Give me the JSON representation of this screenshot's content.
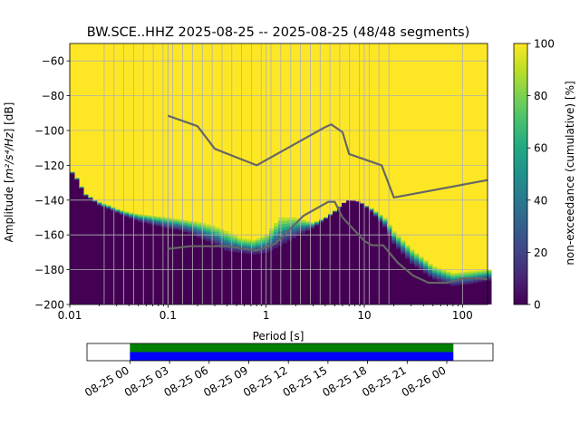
{
  "colors": {
    "viridis": [
      "#440154",
      "#482475",
      "#414487",
      "#355f8d",
      "#2a788e",
      "#21918c",
      "#22a884",
      "#44bf70",
      "#7ad151",
      "#bddf26",
      "#fde725"
    ],
    "model_curve": "#666666",
    "grid": "#b0b0b0",
    "segment_bar_top": "#008000",
    "segment_bar_bottom": "#0000ff"
  },
  "chart_data": [
    {
      "type": "heatmap",
      "title": "BW.SCE..HHZ   2025-08-25 -- 2025-08-25  (48/48 segments)",
      "xlabel": "Period [s]",
      "ylabel_prefix": "Amplitude [",
      "ylabel_math": "m²/s⁴/Hz",
      "ylabel_suffix": "] [dB]",
      "xscale": "log",
      "xlim": [
        0.01,
        180
      ],
      "ylim": [
        -200,
        -50
      ],
      "xticks": [
        {
          "value": 0.01,
          "label": "0.01"
        },
        {
          "value": 0.1,
          "label": "0.1"
        },
        {
          "value": 1,
          "label": "1"
        },
        {
          "value": 10,
          "label": "10"
        },
        {
          "value": 100,
          "label": "100"
        }
      ],
      "yticks": [
        {
          "value": -60,
          "label": "−60"
        },
        {
          "value": -80,
          "label": "−80"
        },
        {
          "value": -100,
          "label": "−100"
        },
        {
          "value": -120,
          "label": "−120"
        },
        {
          "value": -140,
          "label": "−140"
        },
        {
          "value": -160,
          "label": "−160"
        },
        {
          "value": -180,
          "label": "−180"
        },
        {
          "value": -200,
          "label": "−200"
        }
      ],
      "grid": true,
      "period_grid_lines": [
        0.0224,
        0.0282,
        0.0355,
        0.0447,
        0.0562,
        0.0708,
        0.0891,
        0.1,
        0.112,
        0.141,
        0.178,
        0.224,
        0.282,
        0.355,
        0.447,
        0.562,
        0.708,
        0.891,
        1.12,
        1.41,
        1.78,
        2.24,
        2.82,
        3.55,
        4.47,
        5.62,
        7.08,
        8.91,
        11.2,
        14.1,
        17.8
      ],
      "psd_envelope": {
        "period": [
          0.01,
          0.011,
          0.012,
          0.013,
          0.014,
          0.016,
          0.018,
          0.02,
          0.022,
          0.025,
          0.03,
          0.04,
          0.05,
          0.07,
          0.1,
          0.13,
          0.17,
          0.22,
          0.3,
          0.4,
          0.55,
          0.75,
          1,
          1.4,
          2,
          3,
          4,
          5,
          6,
          7,
          9,
          12,
          16,
          20,
          30,
          50,
          80,
          120,
          180
        ],
        "lower_dB": [
          -123,
          -126,
          -129,
          -133,
          -137,
          -139,
          -141,
          -143,
          -144,
          -145,
          -147,
          -150,
          -152,
          -154,
          -156,
          -157,
          -159,
          -162,
          -165,
          -169,
          -170,
          -171,
          -170,
          -166,
          -161,
          -156,
          -151,
          -147,
          -142,
          -140,
          -141,
          -147,
          -155,
          -165,
          -176,
          -185,
          -189,
          -188,
          -186
        ],
        "upper_dB": [
          -122,
          -125,
          -128,
          -132,
          -136,
          -138,
          -140,
          -141,
          -142,
          -143,
          -145,
          -147,
          -148,
          -149,
          -150,
          -151,
          -152,
          -153,
          -155,
          -158,
          -162,
          -163,
          -160,
          -150,
          -150,
          -153,
          -150,
          -146,
          -142,
          -140,
          -141,
          -145,
          -150,
          -158,
          -168,
          -178,
          -182,
          -181,
          -180
        ]
      },
      "colorbar": {
        "label": "non-exceedance (cumulative) [%]",
        "range": [
          0,
          100
        ],
        "ticks": [
          "0",
          "20",
          "40",
          "60",
          "80",
          "100"
        ]
      },
      "series": [
        {
          "name": "",
          "period": [
            0.1,
            0.2,
            0.3,
            0.8,
            4.0,
            4.6,
            6.0,
            7.0,
            15.0,
            20.0,
            180.0
          ],
          "dB": [
            -91.5,
            -97.5,
            -110.5,
            -120.0,
            -98.0,
            -96.5,
            -101.0,
            -113.5,
            -120.0,
            -138.5,
            -128.5
          ]
        },
        {
          "name": "",
          "period": [
            0.1,
            0.17,
            0.4,
            0.8,
            1.24,
            2.4,
            4.3,
            5.0,
            6.0,
            10.0,
            12.0,
            15.6,
            21.9,
            31.6,
            45.0,
            70.0,
            101.0,
            154.0,
            180.0
          ],
          "dB": [
            -168.0,
            -166.5,
            -166.5,
            -169.0,
            -165.0,
            -149.0,
            -141.0,
            -141.0,
            -150.0,
            -163.5,
            -166.0,
            -166.0,
            -176.0,
            -183.5,
            -187.5,
            -187.5,
            -185.0,
            -185.0,
            -185.5
          ]
        }
      ]
    },
    {
      "type": "timeline",
      "xlim": [
        "2025-08-24 20:45",
        "2025-08-26 03:30"
      ],
      "coverage": [
        "2025-08-25 00:00",
        "2025-08-26 00:30"
      ],
      "segments": 48,
      "xtick_labels": [
        "08-25 00",
        "08-25 03",
        "08-25 06",
        "08-25 09",
        "08-25 12",
        "08-25 15",
        "08-25 18",
        "08-25 21",
        "08-26 00"
      ]
    }
  ]
}
